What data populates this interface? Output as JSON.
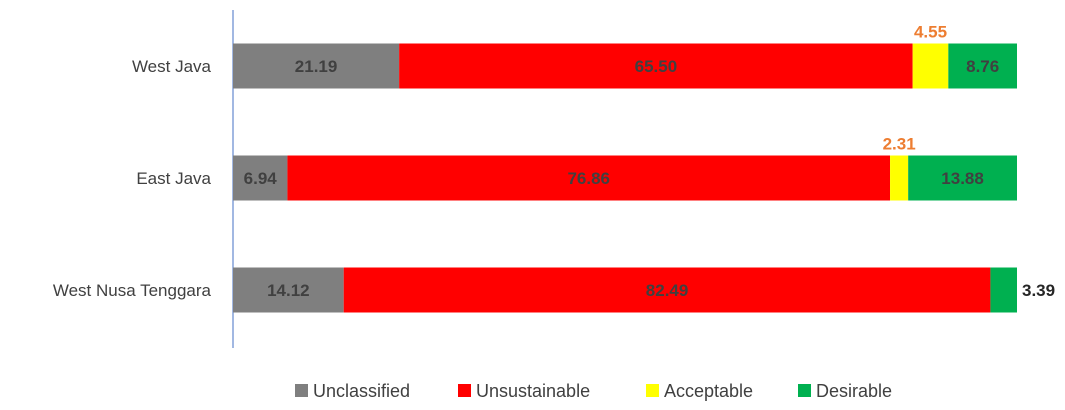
{
  "chart_data": {
    "type": "bar",
    "orientation": "horizontal",
    "stacked": true,
    "percent_stacked": true,
    "categories": [
      "West Java",
      "East Java",
      "West Nusa Tenggara"
    ],
    "series": [
      {
        "name": "Unclassified",
        "color": "#7f7f7f",
        "values": [
          21.19,
          6.94,
          14.12
        ]
      },
      {
        "name": "Unsustainable",
        "color": "#ff0000",
        "values": [
          65.5,
          76.86,
          82.49
        ]
      },
      {
        "name": "Acceptable",
        "color": "#ffff00",
        "values": [
          4.55,
          2.31,
          0
        ]
      },
      {
        "name": "Desirable",
        "color": "#00b050",
        "values": [
          8.76,
          13.88,
          3.39
        ]
      }
    ],
    "data_labels": [
      [
        "21.19",
        "65.50",
        "4.55",
        "8.76"
      ],
      [
        "6.94",
        "76.86",
        "2.31",
        "13.88"
      ],
      [
        "14.12",
        "82.49",
        "",
        "3.39"
      ]
    ],
    "xlim": [
      0,
      100
    ],
    "grid": false,
    "legend_position": "bottom"
  },
  "colors": {
    "inside_label": "#404040",
    "acceptable_label": "#ed7d31",
    "outside_label": "#262626",
    "axis": "#4472c4"
  }
}
